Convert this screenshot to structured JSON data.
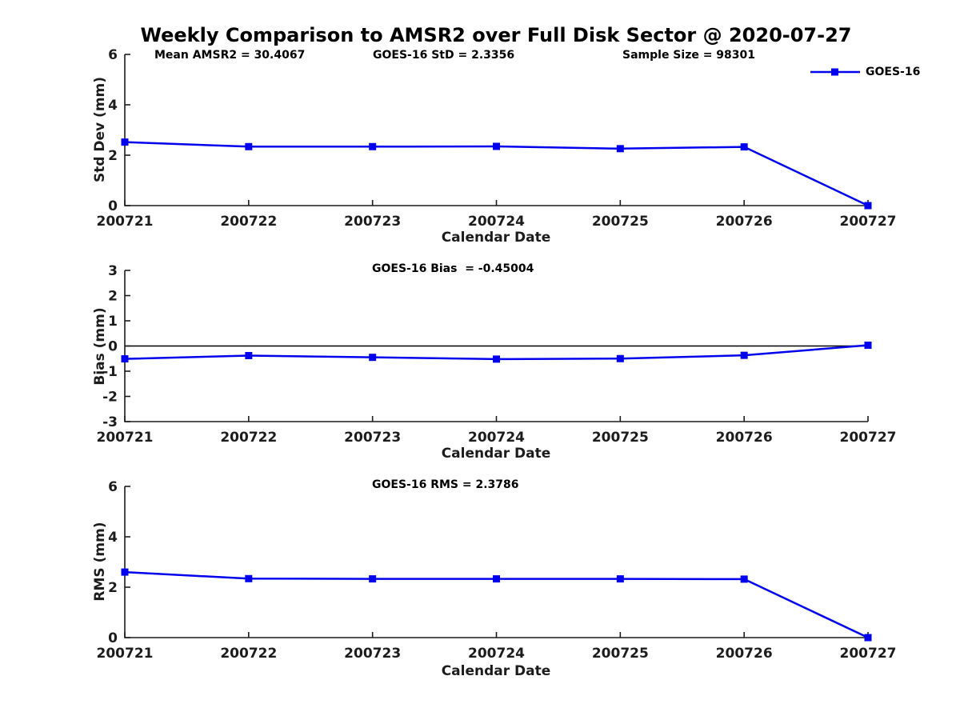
{
  "header": {
    "title": "Weekly Comparison to AMSR2 over Full Disk Sector @ 2020-07-27"
  },
  "colors": {
    "line": "#0000ee",
    "axis": "#1c1c1c",
    "tick_text": "#1c1c1c",
    "zero_line": "#000000",
    "background": "#ffffff"
  },
  "chart_data": [
    {
      "type": "line",
      "title": "",
      "ylabel": "Std Dev (mm)",
      "xlabel": "Calendar Date",
      "categories": [
        "200721",
        "200722",
        "200723",
        "200724",
        "200725",
        "200726",
        "200727"
      ],
      "series": [
        {
          "name": "GOES-16",
          "values": [
            2.52,
            2.34,
            2.34,
            2.35,
            2.26,
            2.33,
            0.0
          ]
        }
      ],
      "ylim": [
        0,
        6
      ],
      "yticks": [
        0,
        2,
        4,
        6
      ],
      "grid": false,
      "zero_line": false,
      "annotations": [
        {
          "text": "Mean AMSR2 = 30.4067"
        },
        {
          "text": "GOES-16 StD = 2.3356"
        },
        {
          "text": "Sample Size = 98301"
        }
      ],
      "legend": {
        "label": "GOES-16",
        "position": "top-right",
        "marker": "square"
      }
    },
    {
      "type": "line",
      "title": "GOES-16 Bias  = -0.45004",
      "ylabel": "Bias (mm)",
      "xlabel": "Calendar Date",
      "categories": [
        "200721",
        "200722",
        "200723",
        "200724",
        "200725",
        "200726",
        "200727"
      ],
      "series": [
        {
          "name": "GOES-16",
          "values": [
            -0.51,
            -0.38,
            -0.45,
            -0.52,
            -0.5,
            -0.37,
            0.03
          ]
        }
      ],
      "ylim": [
        -3,
        3
      ],
      "yticks": [
        -3,
        -2,
        -1,
        0,
        1,
        2,
        3
      ],
      "grid": false,
      "zero_line": true,
      "annotations": [],
      "legend": null
    },
    {
      "type": "line",
      "title": "GOES-16 RMS = 2.3786",
      "ylabel": "RMS (mm)",
      "xlabel": "Calendar Date",
      "categories": [
        "200721",
        "200722",
        "200723",
        "200724",
        "200725",
        "200726",
        "200727"
      ],
      "series": [
        {
          "name": "GOES-16",
          "values": [
            2.6,
            2.34,
            2.33,
            2.33,
            2.33,
            2.32,
            0.0
          ]
        }
      ],
      "ylim": [
        0,
        6
      ],
      "yticks": [
        0,
        2,
        4,
        6
      ],
      "grid": false,
      "zero_line": false,
      "annotations": [],
      "legend": null
    }
  ]
}
